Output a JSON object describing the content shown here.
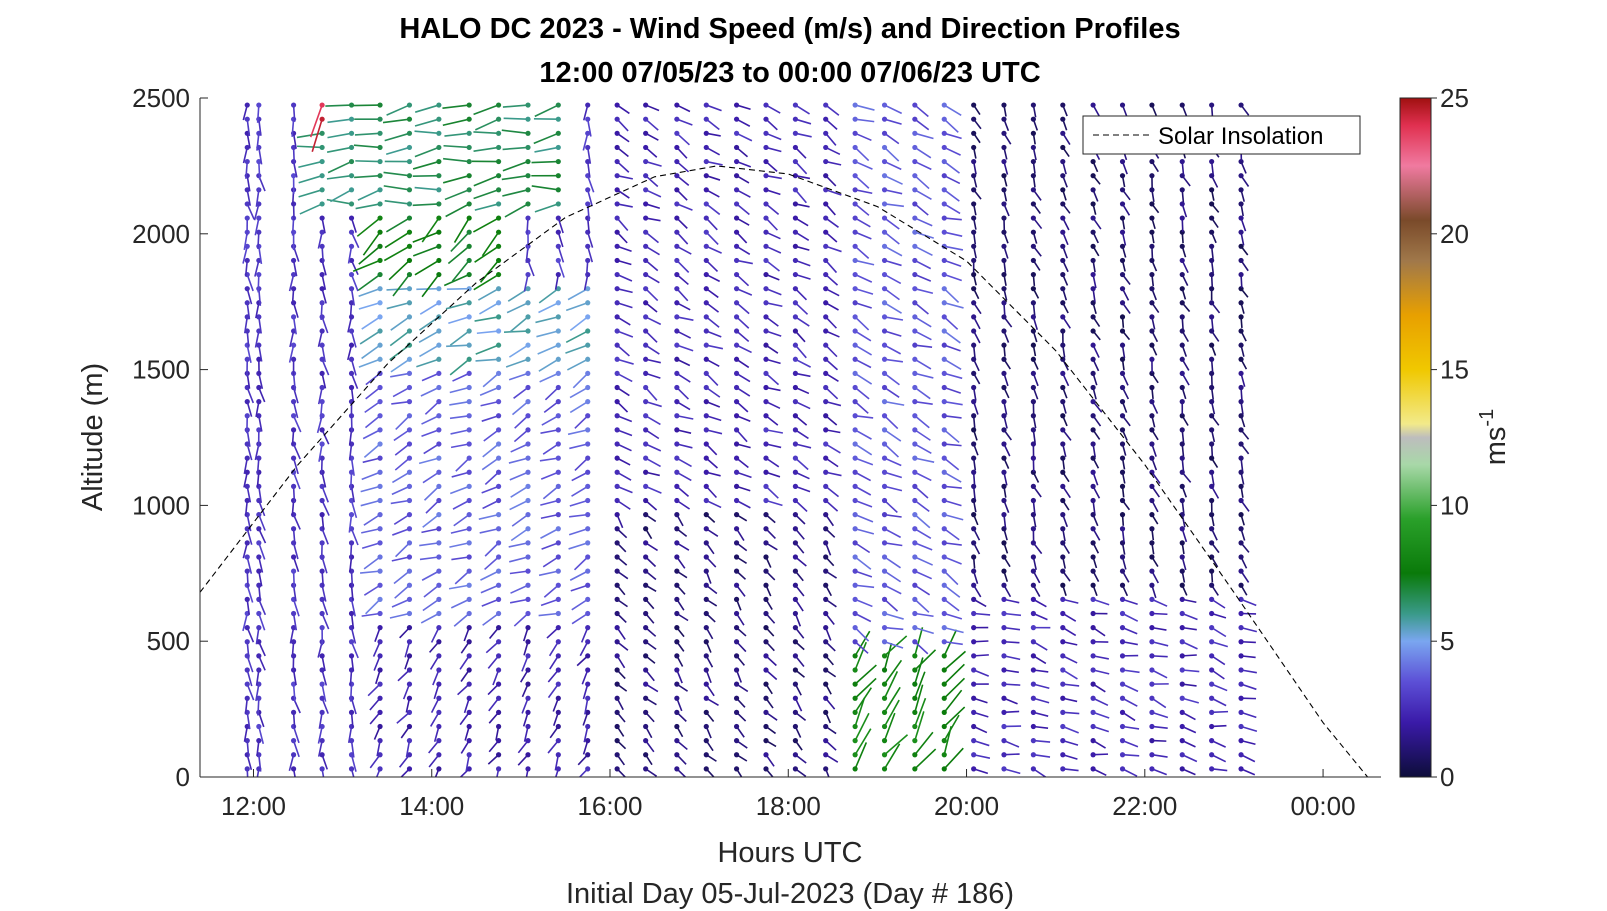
{
  "chart_data": {
    "type": "quiver-profile",
    "title": "HALO DC 2023 - Wind Speed (m/s) and Direction Profiles",
    "subtitle": "12:00 07/05/23 to 00:00 07/06/23  UTC",
    "xlabel": "Hours UTC",
    "x_sublabel": "Initial Day 05-Jul-2023 (Day # 186)",
    "ylabel": "Altitude (m)",
    "xlim": [
      11.4,
      24.65
    ],
    "ylim": [
      0,
      2500
    ],
    "x_ticks": [
      12,
      14,
      16,
      18,
      20,
      22,
      24
    ],
    "x_tick_labels": [
      "12:00",
      "14:00",
      "16:00",
      "18:00",
      "20:00",
      "22:00",
      "00:00"
    ],
    "y_ticks": [
      0,
      500,
      1000,
      1500,
      2000,
      2500
    ],
    "y_tick_labels": [
      "0",
      "500",
      "1000",
      "1500",
      "2000",
      "2500"
    ],
    "colorbar": {
      "label": "ms",
      "label_exponent": "-1",
      "range": [
        0,
        25
      ],
      "ticks": [
        0,
        5,
        10,
        15,
        20,
        25
      ],
      "tick_labels": [
        "0",
        "5",
        "10",
        "15",
        "20",
        "25"
      ],
      "stops": [
        {
          "v": 0,
          "c": "#0d0d3a"
        },
        {
          "v": 2,
          "c": "#3a1aa8"
        },
        {
          "v": 3.5,
          "c": "#5c4fd6"
        },
        {
          "v": 5,
          "c": "#7aa6f0"
        },
        {
          "v": 6,
          "c": "#3a9a8a"
        },
        {
          "v": 7.5,
          "c": "#0a7a0a"
        },
        {
          "v": 9.5,
          "c": "#2aa02a"
        },
        {
          "v": 11.5,
          "c": "#a8d8a8"
        },
        {
          "v": 12.5,
          "c": "#bdbdbd"
        },
        {
          "v": 13,
          "c": "#f2ea8a"
        },
        {
          "v": 15,
          "c": "#f0c800"
        },
        {
          "v": 17,
          "c": "#e8a000"
        },
        {
          "v": 19,
          "c": "#a0784a"
        },
        {
          "v": 20.5,
          "c": "#7a4a2a"
        },
        {
          "v": 22.5,
          "c": "#f07aa0"
        },
        {
          "v": 24,
          "c": "#e03050"
        },
        {
          "v": 25,
          "c": "#a01010"
        }
      ]
    },
    "legend": {
      "entries": [
        "Solar Insolation"
      ],
      "placement": "top-right",
      "style": "dashed"
    },
    "solar_insolation": {
      "x": [
        11.4,
        12.5,
        13.5,
        14.5,
        15.5,
        16.5,
        17.2,
        18,
        19,
        20,
        21,
        22,
        23,
        24,
        24.5
      ],
      "y": [
        680,
        1150,
        1520,
        1820,
        2060,
        2210,
        2250,
        2220,
        2100,
        1900,
        1570,
        1150,
        680,
        200,
        0
      ]
    },
    "profile_times": [
      11.93,
      12.06,
      12.45,
      12.77,
      13.1,
      13.42,
      13.75,
      14.08,
      14.42,
      14.75,
      15.08,
      15.42,
      15.75,
      16.08,
      16.4,
      16.75,
      17.08,
      17.42,
      17.75,
      18.08,
      18.42,
      18.75,
      19.08,
      19.42,
      19.75,
      20.08,
      20.42,
      20.75,
      21.08,
      21.42,
      21.75,
      22.08,
      22.42,
      22.75,
      23.08
    ],
    "altitude_step_m": 52,
    "altitude_max_m": 2500,
    "wind_regimes": [
      {
        "t0": 11.9,
        "t1": 13.3,
        "z0": 0,
        "z1": 2600,
        "speed": 2.8,
        "dir_deg": 175
      },
      {
        "t0": 13.3,
        "t1": 15.9,
        "z0": 600,
        "z1": 1500,
        "speed": 3.8,
        "dir_deg": 245
      },
      {
        "t0": 13.3,
        "t1": 15.9,
        "z0": 1500,
        "z1": 1800,
        "speed": 5.5,
        "dir_deg": 250
      },
      {
        "t0": 13.4,
        "t1": 15.0,
        "z0": 1800,
        "z1": 2100,
        "speed": 7.5,
        "dir_deg": 230
      },
      {
        "t0": 12.7,
        "t1": 15.6,
        "z0": 2100,
        "z1": 2600,
        "speed": 6.5,
        "dir_deg": 260
      },
      {
        "t0": 12.7,
        "t1": 12.9,
        "z0": 2400,
        "z1": 2600,
        "speed": 24,
        "dir_deg": 190
      },
      {
        "t0": 13.3,
        "t1": 16.4,
        "z0": 0,
        "z1": 600,
        "speed": 2.2,
        "dir_deg": 210
      },
      {
        "t0": 15.9,
        "t1": 18.7,
        "z0": 0,
        "z1": 1000,
        "speed": 1.2,
        "dir_deg": 140
      },
      {
        "t0": 15.9,
        "t1": 18.7,
        "z0": 1000,
        "z1": 2600,
        "speed": 2.4,
        "dir_deg": 120
      },
      {
        "t0": 18.7,
        "t1": 19.9,
        "z0": 0,
        "z1": 450,
        "speed": 8.0,
        "dir_deg": 30
      },
      {
        "t0": 18.7,
        "t1": 19.9,
        "z0": 450,
        "z1": 2600,
        "speed": 3.6,
        "dir_deg": 115
      },
      {
        "t0": 19.9,
        "t1": 23.2,
        "z0": 0,
        "z1": 700,
        "speed": 2.4,
        "dir_deg": 105
      },
      {
        "t0": 19.9,
        "t1": 23.2,
        "z0": 700,
        "z1": 2600,
        "speed": 1.0,
        "dir_deg": 160
      }
    ]
  }
}
